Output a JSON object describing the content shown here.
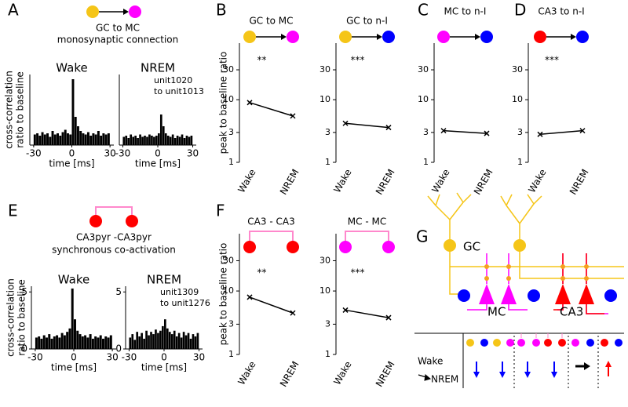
{
  "panel_labels": [
    "A",
    "B",
    "C",
    "D",
    "E",
    "F",
    "G"
  ],
  "headers": {
    "A": [
      "GC to MC",
      "monosynaptic connection"
    ],
    "E": [
      "CA3pyr -CA3pyr",
      "synchronous co-activation"
    ]
  },
  "diagram_g": {
    "gc": "GC",
    "mc": "MC",
    "ca3": "CA3",
    "row_from": "Wake",
    "row_to": "NREM"
  },
  "chart_data": [
    {
      "type": "histogram",
      "title": "Wake",
      "y_label": [
        "cross-correlation",
        "ratio to baseline"
      ],
      "x_label": "time [ms]",
      "bins": [
        -30,
        -28,
        -26,
        -24,
        -22,
        -20,
        -18,
        -16,
        -14,
        -12,
        -10,
        -8,
        -6,
        -4,
        -2,
        0,
        2,
        4,
        6,
        8,
        10,
        12,
        14,
        16,
        18,
        20,
        22,
        24,
        26,
        28,
        30
      ],
      "values": [
        0.9,
        1.0,
        0.8,
        1.1,
        0.9,
        1.0,
        0.7,
        1.2,
        0.9,
        1.0,
        0.8,
        1.1,
        1.3,
        1.0,
        0.9,
        5.6,
        2.4,
        1.6,
        1.2,
        1.0,
        0.9,
        1.1,
        0.8,
        1.0,
        0.9,
        1.2,
        0.8,
        1.0,
        0.9,
        1.0
      ],
      "color": "#000000",
      "xlim": [
        -33,
        33
      ],
      "xticks": [
        -30,
        0,
        30
      ],
      "ylim": [
        0,
        6
      ]
    },
    {
      "type": "histogram",
      "title": "NREM",
      "annotation": [
        "unit1020",
        "to unit1013"
      ],
      "x_label": "time [ms]",
      "bins": [
        -30,
        -28,
        -26,
        -24,
        -22,
        -20,
        -18,
        -16,
        -14,
        -12,
        -10,
        -8,
        -6,
        -4,
        -2,
        0,
        2,
        4,
        6,
        8,
        10,
        12,
        14,
        16,
        18,
        20,
        22,
        24,
        26,
        28,
        30
      ],
      "values": [
        0.7,
        0.8,
        0.6,
        0.9,
        0.7,
        0.8,
        0.6,
        0.9,
        0.7,
        0.8,
        0.7,
        0.9,
        0.8,
        0.7,
        0.8,
        1.0,
        2.6,
        1.6,
        1.0,
        0.8,
        0.7,
        0.9,
        0.6,
        0.8,
        0.7,
        0.9,
        0.6,
        0.8,
        0.7,
        0.8
      ],
      "color": "#000000",
      "xlim": [
        -33,
        33
      ],
      "xticks": [
        -30,
        0,
        30
      ],
      "ylim": [
        0,
        6
      ]
    },
    {
      "type": "paired",
      "title": "GC to MC",
      "nodes": [
        "#f5c518",
        "#ff00ff"
      ],
      "link": "arrow",
      "y_label": "peak to baseline ratio",
      "significance": "**",
      "categories": [
        "Wake",
        "NREM"
      ],
      "values": [
        9,
        5.5
      ],
      "color": "#000000",
      "log": true,
      "ylim": [
        1,
        80
      ],
      "yticks": [
        1,
        3,
        10,
        30
      ]
    },
    {
      "type": "paired",
      "title": "GC to n-I",
      "nodes": [
        "#f5c518",
        "#0000ff"
      ],
      "link": "arrow",
      "significance": "***",
      "categories": [
        "Wake",
        "NREM"
      ],
      "values": [
        4.2,
        3.6
      ],
      "color": "#000000",
      "log": true,
      "ylim": [
        1,
        80
      ],
      "yticks": [
        1,
        3,
        10,
        30
      ]
    },
    {
      "type": "paired",
      "title": "MC to n-I",
      "nodes": [
        "#ff00ff",
        "#0000ff"
      ],
      "link": "arrow",
      "categories": [
        "Wake",
        "NREM"
      ],
      "values": [
        3.2,
        2.9
      ],
      "color": "#000000",
      "log": true,
      "ylim": [
        1,
        80
      ],
      "yticks": [
        1,
        3,
        10,
        30
      ]
    },
    {
      "type": "paired",
      "title": "CA3 to n-I",
      "nodes": [
        "#ff0000",
        "#0000ff"
      ],
      "link": "arrow",
      "significance": "***",
      "categories": [
        "Wake",
        "NREM"
      ],
      "values": [
        2.8,
        3.2
      ],
      "color": "#000000",
      "log": true,
      "ylim": [
        1,
        80
      ],
      "yticks": [
        1,
        3,
        10,
        30
      ]
    },
    {
      "type": "histogram",
      "title": "Wake",
      "y_label": [
        "cross-correlation",
        "ratio to baseline"
      ],
      "x_label": "time [ms]",
      "bins": [
        -30,
        -28,
        -26,
        -24,
        -22,
        -20,
        -18,
        -16,
        -14,
        -12,
        -10,
        -8,
        -6,
        -4,
        -2,
        0,
        2,
        4,
        6,
        8,
        10,
        12,
        14,
        16,
        18,
        20,
        22,
        24,
        26,
        28,
        30
      ],
      "values": [
        1.0,
        1.1,
        0.9,
        1.2,
        1.0,
        1.3,
        0.9,
        1.1,
        1.2,
        1.0,
        1.4,
        1.2,
        1.5,
        1.8,
        5.3,
        2.6,
        1.6,
        1.3,
        1.1,
        1.2,
        1.0,
        1.3,
        0.9,
        1.1,
        1.0,
        1.2,
        0.9,
        1.1,
        1.0,
        1.2
      ],
      "color": "#000000",
      "xlim": [
        -33,
        33
      ],
      "xticks": [
        -30,
        0,
        30
      ],
      "ylim": [
        0,
        5.5
      ],
      "yticks": [
        0,
        5
      ]
    },
    {
      "type": "histogram",
      "title": "NREM",
      "annotation": [
        "unit1309",
        "to unit1276"
      ],
      "x_label": "time [ms]",
      "bins": [
        -30,
        -28,
        -26,
        -24,
        -22,
        -20,
        -18,
        -16,
        -14,
        -12,
        -10,
        -8,
        -6,
        -4,
        -2,
        0,
        2,
        4,
        6,
        8,
        10,
        12,
        14,
        16,
        18,
        20,
        22,
        24,
        26,
        28,
        30
      ],
      "values": [
        1.0,
        1.3,
        0.8,
        1.5,
        1.1,
        1.4,
        0.9,
        1.6,
        1.2,
        1.5,
        1.3,
        1.7,
        1.4,
        1.6,
        2.0,
        2.6,
        1.8,
        1.5,
        1.3,
        1.6,
        1.1,
        1.4,
        1.0,
        1.5,
        1.2,
        1.4,
        0.9,
        1.3,
        1.1,
        1.4
      ],
      "color": "#000000",
      "xlim": [
        -33,
        33
      ],
      "xticks": [
        -30,
        0,
        30
      ],
      "ylim": [
        0,
        5.5
      ],
      "yticks": [
        0,
        5
      ]
    },
    {
      "type": "paired",
      "title": "CA3 - CA3",
      "nodes": [
        "#ff0000",
        "#ff0000"
      ],
      "link": "sync",
      "y_label": "peak to baseline ratio",
      "significance": "**",
      "categories": [
        "Wake",
        "NREM"
      ],
      "values": [
        8,
        4.5
      ],
      "color": "#000000",
      "log": true,
      "ylim": [
        1,
        80
      ],
      "yticks": [
        1,
        3,
        10,
        30
      ]
    },
    {
      "type": "paired",
      "title": "MC - MC",
      "nodes": [
        "#ff00ff",
        "#ff00ff"
      ],
      "link": "sync",
      "significance": "***",
      "categories": [
        "Wake",
        "NREM"
      ],
      "values": [
        5,
        3.8
      ],
      "color": "#000000",
      "log": true,
      "ylim": [
        1,
        80
      ],
      "yticks": [
        1,
        3,
        10,
        30
      ]
    }
  ]
}
